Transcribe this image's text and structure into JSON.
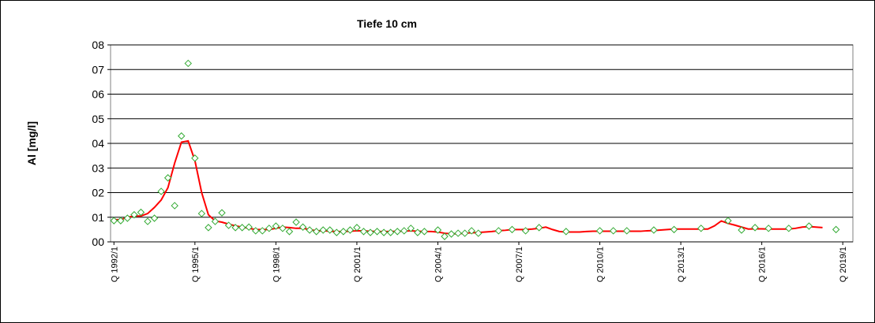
{
  "chart_data": {
    "type": "scatter-line",
    "title": "Tiefe  10 cm",
    "y_label": "Al [mg/l]",
    "categories": [
      "Q 1992/1",
      null,
      null,
      null,
      null,
      null,
      null,
      null,
      null,
      null,
      null,
      null,
      "Q 1995/1",
      null,
      null,
      null,
      null,
      null,
      null,
      null,
      null,
      null,
      null,
      null,
      "Q 1998/1",
      null,
      null,
      null,
      null,
      null,
      null,
      null,
      null,
      null,
      null,
      null,
      "Q 2001/1",
      null,
      null,
      null,
      null,
      null,
      null,
      null,
      null,
      null,
      null,
      null,
      "Q 2004/1",
      null,
      null,
      null,
      null,
      null,
      null,
      null,
      null,
      null,
      null,
      null,
      "Q 2007/1",
      null,
      null,
      null,
      null,
      null,
      null,
      null,
      null,
      null,
      null,
      null,
      "Q 2010/1",
      null,
      null,
      null,
      null,
      null,
      null,
      null,
      null,
      null,
      null,
      null,
      "Q 2013/1",
      null,
      null,
      null,
      null,
      null,
      null,
      null,
      null,
      null,
      null,
      null,
      "Q 2016/1",
      null,
      null,
      null,
      null,
      null,
      null,
      null,
      null,
      null,
      null,
      null,
      "Q 2019/1",
      null
    ],
    "series": [
      {
        "style": "markers",
        "color": "#33aa33",
        "values": [
          0.86,
          0.86,
          0.96,
          1.1,
          1.2,
          0.83,
          0.96,
          2.05,
          2.6,
          1.47,
          4.3,
          7.25,
          3.4,
          1.15,
          0.58,
          0.83,
          1.18,
          0.67,
          0.58,
          0.58,
          0.6,
          0.45,
          0.45,
          0.55,
          0.64,
          0.55,
          0.42,
          0.8,
          0.6,
          0.48,
          0.42,
          0.48,
          0.48,
          0.38,
          0.42,
          0.48,
          0.58,
          0.42,
          0.38,
          0.42,
          0.38,
          0.38,
          0.42,
          0.45,
          0.55,
          0.38,
          0.42,
          null,
          0.48,
          0.22,
          0.32,
          0.35,
          0.35,
          0.45,
          0.35,
          null,
          null,
          0.45,
          null,
          0.5,
          null,
          0.45,
          null,
          0.58,
          null,
          null,
          null,
          0.42,
          null,
          null,
          null,
          null,
          0.45,
          null,
          0.45,
          null,
          0.45,
          null,
          null,
          null,
          0.48,
          null,
          null,
          0.5,
          null,
          null,
          null,
          0.55,
          null,
          null,
          null,
          0.86,
          null,
          0.48,
          null,
          0.58,
          null,
          0.55,
          null,
          null,
          0.55,
          null,
          null,
          0.64,
          null,
          null,
          null,
          0.5,
          null,
          null
        ]
      },
      {
        "style": "line",
        "color": "#ff0000",
        "values": [
          0.9,
          0.9,
          1.0,
          1.05,
          1.05,
          1.15,
          1.4,
          1.7,
          2.2,
          3.2,
          4.05,
          4.1,
          3.3,
          2.0,
          1.1,
          0.85,
          0.8,
          0.72,
          0.65,
          0.6,
          0.55,
          0.5,
          0.5,
          0.5,
          0.55,
          0.6,
          0.58,
          0.55,
          0.55,
          0.5,
          0.45,
          0.45,
          0.43,
          0.42,
          0.42,
          0.43,
          0.45,
          0.45,
          0.43,
          0.42,
          0.42,
          0.42,
          0.43,
          0.43,
          0.45,
          0.43,
          0.42,
          0.42,
          0.4,
          0.35,
          0.33,
          0.33,
          0.35,
          0.37,
          0.38,
          0.4,
          0.42,
          0.45,
          0.47,
          0.5,
          0.5,
          0.5,
          0.52,
          0.55,
          0.6,
          0.5,
          0.42,
          0.4,
          0.4,
          0.4,
          0.42,
          0.43,
          0.43,
          0.43,
          0.43,
          0.43,
          0.43,
          0.43,
          0.43,
          0.45,
          0.46,
          0.48,
          0.5,
          0.52,
          0.52,
          0.52,
          0.52,
          0.52,
          0.52,
          0.65,
          0.85,
          0.75,
          0.68,
          0.6,
          0.52,
          0.53,
          0.53,
          0.52,
          0.52,
          0.52,
          0.52,
          0.55,
          0.6,
          0.62,
          0.6,
          0.58,
          null,
          null,
          null,
          null
        ]
      }
    ],
    "ylim": [
      0,
      8
    ],
    "yticks": [
      {
        "value": 0,
        "label": "00"
      },
      {
        "value": 1,
        "label": "01"
      },
      {
        "value": 2,
        "label": "02"
      },
      {
        "value": 3,
        "label": "03"
      },
      {
        "value": 4,
        "label": "04"
      },
      {
        "value": 5,
        "label": "05"
      },
      {
        "value": 6,
        "label": "06"
      },
      {
        "value": 7,
        "label": "07"
      },
      {
        "value": 8,
        "label": "08"
      }
    ],
    "grid": true
  }
}
